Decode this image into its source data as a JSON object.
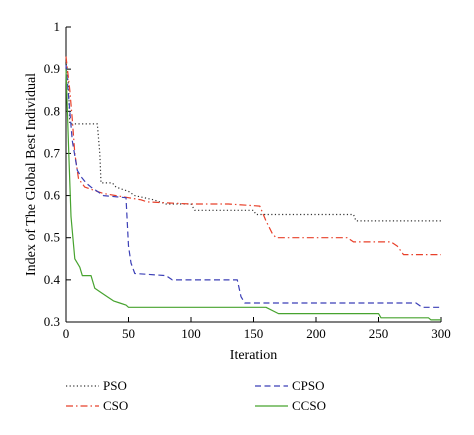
{
  "chart_data": {
    "type": "line",
    "title": "",
    "xlabel": "Iteration",
    "ylabel": "Index of The Global Best Individual",
    "xlim": [
      0,
      300
    ],
    "ylim": [
      0.3,
      1.0
    ],
    "xticks": [
      0,
      50,
      100,
      150,
      200,
      250,
      300
    ],
    "yticks": [
      0.3,
      0.4,
      0.5,
      0.6,
      0.7,
      0.8,
      0.9,
      1.0
    ],
    "ytick_labels": [
      "0.3",
      "0.4",
      "0.5",
      "0.6",
      "0.7",
      "0.8",
      "0.9",
      "1"
    ],
    "grid": false,
    "legend_position": "below",
    "series": [
      {
        "name": "PSO",
        "color": "#333333",
        "dash": "dotted",
        "points": [
          [
            0,
            0.92
          ],
          [
            2,
            0.86
          ],
          [
            3,
            0.77
          ],
          [
            25,
            0.77
          ],
          [
            27,
            0.7
          ],
          [
            28,
            0.63
          ],
          [
            37,
            0.63
          ],
          [
            40,
            0.62
          ],
          [
            50,
            0.61
          ],
          [
            55,
            0.6
          ],
          [
            70,
            0.59
          ],
          [
            80,
            0.58
          ],
          [
            100,
            0.58
          ],
          [
            103,
            0.565
          ],
          [
            150,
            0.565
          ],
          [
            152,
            0.555
          ],
          [
            230,
            0.555
          ],
          [
            232,
            0.54
          ],
          [
            300,
            0.54
          ]
        ]
      },
      {
        "name": "CSO",
        "color": "#e8402a",
        "dash": "dashdot",
        "points": [
          [
            0,
            0.93
          ],
          [
            3,
            0.85
          ],
          [
            5,
            0.78
          ],
          [
            7,
            0.7
          ],
          [
            10,
            0.64
          ],
          [
            15,
            0.62
          ],
          [
            25,
            0.61
          ],
          [
            30,
            0.605
          ],
          [
            40,
            0.6
          ],
          [
            60,
            0.59
          ],
          [
            65,
            0.585
          ],
          [
            100,
            0.58
          ],
          [
            130,
            0.58
          ],
          [
            155,
            0.575
          ],
          [
            160,
            0.54
          ],
          [
            165,
            0.51
          ],
          [
            168,
            0.5
          ],
          [
            225,
            0.5
          ],
          [
            230,
            0.49
          ],
          [
            260,
            0.49
          ],
          [
            265,
            0.48
          ],
          [
            270,
            0.46
          ],
          [
            300,
            0.46
          ]
        ]
      },
      {
        "name": "CPSO",
        "color": "#3b3fb6",
        "dash": "dashed",
        "points": [
          [
            0,
            0.91
          ],
          [
            3,
            0.8
          ],
          [
            5,
            0.73
          ],
          [
            9,
            0.66
          ],
          [
            12,
            0.645
          ],
          [
            16,
            0.63
          ],
          [
            20,
            0.62
          ],
          [
            30,
            0.6
          ],
          [
            48,
            0.595
          ],
          [
            50,
            0.48
          ],
          [
            52,
            0.44
          ],
          [
            55,
            0.415
          ],
          [
            80,
            0.41
          ],
          [
            85,
            0.4
          ],
          [
            137,
            0.4
          ],
          [
            140,
            0.36
          ],
          [
            143,
            0.345
          ],
          [
            155,
            0.345
          ],
          [
            280,
            0.345
          ],
          [
            285,
            0.335
          ],
          [
            300,
            0.335
          ]
        ]
      },
      {
        "name": "CCSO",
        "color": "#47a32f",
        "dash": "solid",
        "points": [
          [
            0,
            0.9
          ],
          [
            2,
            0.72
          ],
          [
            4,
            0.55
          ],
          [
            7,
            0.45
          ],
          [
            11,
            0.43
          ],
          [
            13,
            0.41
          ],
          [
            20,
            0.41
          ],
          [
            23,
            0.38
          ],
          [
            28,
            0.37
          ],
          [
            33,
            0.36
          ],
          [
            38,
            0.35
          ],
          [
            43,
            0.345
          ],
          [
            48,
            0.34
          ],
          [
            50,
            0.335
          ],
          [
            100,
            0.335
          ],
          [
            160,
            0.335
          ],
          [
            170,
            0.32
          ],
          [
            250,
            0.32
          ],
          [
            252,
            0.31
          ],
          [
            290,
            0.31
          ],
          [
            292,
            0.305
          ],
          [
            300,
            0.305
          ]
        ]
      }
    ]
  }
}
